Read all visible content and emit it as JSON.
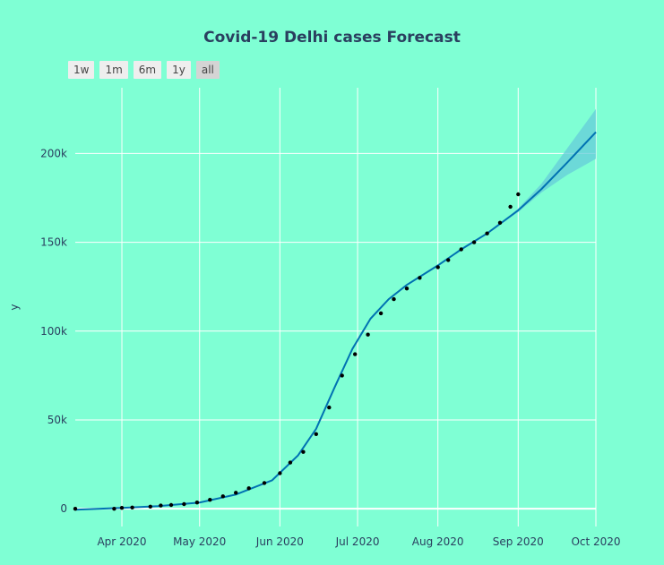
{
  "chart_data": {
    "type": "line",
    "title": "Covid-19 Delhi cases Forecast",
    "xlabel": "",
    "ylabel": "y",
    "x_range": [
      "2020-03-14",
      "2020-10-01"
    ],
    "ylim": [
      -10000,
      237000
    ],
    "y_ticks": [
      0,
      50000,
      100000,
      150000,
      200000
    ],
    "y_tick_labels": [
      "0",
      "50k",
      "100k",
      "150k",
      "200k"
    ],
    "x_ticks": [
      "2020-04-01",
      "2020-05-01",
      "2020-06-01",
      "2020-07-01",
      "2020-08-01",
      "2020-09-01",
      "2020-10-01"
    ],
    "x_tick_labels": [
      "Apr 2020",
      "May 2020",
      "Jun 2020",
      "Jul 2020",
      "Aug 2020",
      "Sep 2020",
      "Oct 2020"
    ],
    "grid": true,
    "legend": "none",
    "range_buttons": [
      {
        "label": "1w",
        "active": false
      },
      {
        "label": "1m",
        "active": false
      },
      {
        "label": "6m",
        "active": false
      },
      {
        "label": "1y",
        "active": false
      },
      {
        "label": "all",
        "active": true
      }
    ],
    "colors": {
      "background": "#7fffd4",
      "forecast_line": "#0072b2",
      "uncertainty_band": "#66ccd9",
      "observed_points": "#000000",
      "grid": "#ffffff"
    },
    "forecast": {
      "x": [
        "2020-03-14",
        "2020-04-01",
        "2020-04-15",
        "2020-05-01",
        "2020-05-15",
        "2020-05-29",
        "2020-06-08",
        "2020-06-15",
        "2020-06-22",
        "2020-06-29",
        "2020-07-06",
        "2020-07-13",
        "2020-07-20",
        "2020-08-01",
        "2020-08-10",
        "2020-08-20",
        "2020-09-01",
        "2020-09-10",
        "2020-09-20",
        "2020-10-01"
      ],
      "y": [
        -500,
        500,
        1500,
        3500,
        8000,
        16000,
        30000,
        45000,
        68000,
        90000,
        107000,
        118000,
        126000,
        137000,
        146000,
        155000,
        168000,
        180000,
        195000,
        212000
      ],
      "lower": [
        -500,
        500,
        1500,
        3500,
        8000,
        16000,
        30000,
        45000,
        68000,
        90000,
        107000,
        118000,
        126000,
        137000,
        146000,
        155000,
        167000,
        178000,
        188000,
        197000
      ],
      "upper": [
        -500,
        500,
        1500,
        3500,
        8000,
        16000,
        30000,
        45000,
        68000,
        90000,
        107000,
        118000,
        126000,
        137000,
        146000,
        155000,
        169000,
        183000,
        203000,
        225000
      ]
    },
    "observed": {
      "x": [
        "2020-03-14",
        "2020-03-29",
        "2020-04-01",
        "2020-04-05",
        "2020-04-12",
        "2020-04-16",
        "2020-04-20",
        "2020-04-25",
        "2020-04-30",
        "2020-05-05",
        "2020-05-10",
        "2020-05-15",
        "2020-05-20",
        "2020-05-26",
        "2020-06-01",
        "2020-06-05",
        "2020-06-10",
        "2020-06-15",
        "2020-06-20",
        "2020-06-25",
        "2020-06-30",
        "2020-07-05",
        "2020-07-10",
        "2020-07-15",
        "2020-07-20",
        "2020-07-25",
        "2020-08-01",
        "2020-08-05",
        "2020-08-10",
        "2020-08-15",
        "2020-08-20",
        "2020-08-25",
        "2020-08-29",
        "2020-09-01"
      ],
      "y": [
        0,
        0,
        500,
        700,
        1200,
        1800,
        2100,
        2600,
        3500,
        5000,
        7000,
        9000,
        11500,
        14500,
        20000,
        26000,
        32000,
        42000,
        57000,
        75000,
        87000,
        98000,
        110000,
        118000,
        124000,
        130000,
        136000,
        140000,
        146000,
        150000,
        155000,
        161000,
        170000,
        177000
      ]
    }
  }
}
